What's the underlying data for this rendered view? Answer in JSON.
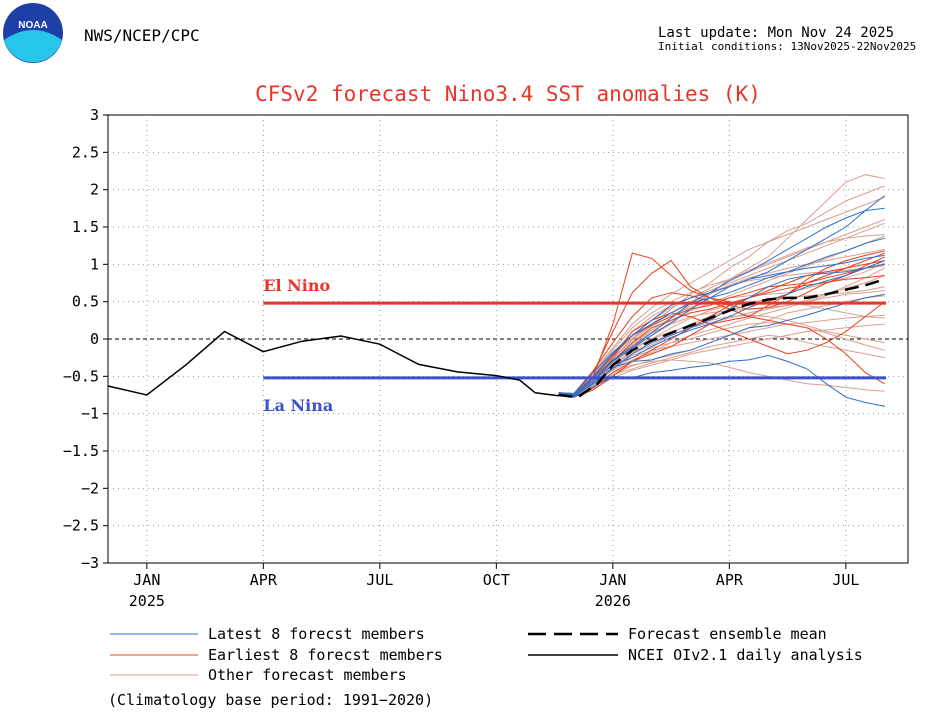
{
  "header": {
    "org": "NWS/NCEP/CPC",
    "logo_text": "NOAA",
    "last_update": "Last update: Mon Nov 24 2025",
    "initial_conditions": "Initial conditions: 13Nov2025-22Nov2025"
  },
  "colors": {
    "title": "#e8352a",
    "el_nino": "#e8352a",
    "la_nina": "#3e4fcf",
    "latest": "#2f6fcc",
    "earliest": "#e8401a",
    "other": "#d8a090",
    "analysis": "#000000",
    "logo_blue": "#1f3fa8",
    "logo_cyan": "#27c6e8"
  },
  "footer": {
    "climatology": "(Climatology base period: 1991−2020)"
  },
  "chart_data": {
    "type": "line",
    "title": "CFSv2 forecast Nino3.4 SST anomalies (K)",
    "xlabel": "",
    "ylabel": "",
    "xlim": [
      0,
      20.6
    ],
    "ylim": [
      -3,
      3
    ],
    "x_ticks": [
      {
        "x": 1,
        "label": "JAN",
        "year": "2025"
      },
      {
        "x": 4,
        "label": "APR",
        "year": ""
      },
      {
        "x": 7,
        "label": "JUL",
        "year": ""
      },
      {
        "x": 10,
        "label": "OCT",
        "year": ""
      },
      {
        "x": 13,
        "label": "JAN",
        "year": "2026"
      },
      {
        "x": 16,
        "label": "APR",
        "year": ""
      },
      {
        "x": 19,
        "label": "JUL",
        "year": ""
      }
    ],
    "y_ticks": [
      3,
      2.5,
      2,
      1.5,
      1,
      0.5,
      0,
      -0.5,
      -1,
      -1.5,
      -2,
      -2.5,
      -3
    ],
    "y_tick_labels": [
      "3",
      "2.5",
      "2",
      "1.5",
      "1",
      "0.5",
      "0",
      "−0.5",
      "−1",
      "−1.5",
      "−2",
      "−2.5",
      "−3"
    ],
    "grid": true,
    "thresholds": [
      {
        "name": "El Nino",
        "value": 0.48,
        "x_start": 4,
        "x_end": 20.6
      },
      {
        "name": "La Nina",
        "value": -0.52,
        "x_start": 4,
        "x_end": 20.6
      }
    ],
    "zero_line": 0,
    "analysis": {
      "name": "NCEI OIv2.1 daily analysis",
      "x": [
        0,
        1,
        2,
        3,
        4,
        5,
        6,
        7,
        8,
        9,
        10,
        10.6,
        11,
        11.6
      ],
      "y": [
        -0.63,
        -0.75,
        -0.35,
        0.1,
        -0.17,
        -0.03,
        0.04,
        -0.07,
        -0.34,
        -0.44,
        -0.49,
        -0.55,
        -0.72,
        -0.76
      ]
    },
    "ensemble_mean": {
      "name": "Forecast ensemble mean",
      "x": [
        11.6,
        12.1,
        12.6,
        13,
        13.5,
        14,
        14.5,
        15,
        15.5,
        16,
        16.5,
        17,
        17.5,
        18,
        18.5,
        19,
        19.5,
        20
      ],
      "y": [
        -0.75,
        -0.78,
        -0.6,
        -0.35,
        -0.15,
        -0.02,
        0.08,
        0.18,
        0.28,
        0.38,
        0.47,
        0.53,
        0.55,
        0.55,
        0.6,
        0.66,
        0.72,
        0.8
      ]
    },
    "member_x": [
      11.6,
      12,
      12.5,
      13,
      13.5,
      14,
      14.5,
      15,
      15.5,
      16,
      16.5,
      17,
      17.5,
      18,
      18.5,
      19,
      19.5,
      20
    ],
    "latest_members": [
      [
        -0.72,
        -0.75,
        -0.55,
        -0.3,
        -0.12,
        0.05,
        0.22,
        0.4,
        0.55,
        0.7,
        0.8,
        0.9,
        1.05,
        1.2,
        1.35,
        1.5,
        1.72,
        1.92
      ],
      [
        -0.72,
        -0.74,
        -0.52,
        -0.28,
        -0.1,
        0.08,
        0.28,
        0.48,
        0.62,
        0.78,
        0.9,
        1.05,
        1.2,
        1.35,
        1.5,
        1.62,
        1.72,
        1.75
      ],
      [
        -0.72,
        -0.76,
        -0.6,
        -0.38,
        -0.3,
        -0.28,
        -0.2,
        -0.15,
        -0.05,
        0.05,
        0.15,
        0.18,
        0.25,
        0.32,
        0.4,
        0.48,
        0.55,
        0.6
      ],
      [
        -0.72,
        -0.78,
        -0.64,
        -0.5,
        -0.52,
        -0.45,
        -0.42,
        -0.38,
        -0.35,
        -0.3,
        -0.28,
        -0.22,
        -0.3,
        -0.4,
        -0.6,
        -0.78,
        -0.85,
        -0.9
      ],
      [
        -0.72,
        -0.75,
        -0.5,
        -0.2,
        0.05,
        0.25,
        0.45,
        0.55,
        0.62,
        0.7,
        0.8,
        0.85,
        0.9,
        0.95,
        0.98,
        1.02,
        1.08,
        1.12
      ],
      [
        -0.72,
        -0.73,
        -0.45,
        -0.18,
        0.05,
        0.2,
        0.35,
        0.48,
        0.55,
        0.62,
        0.72,
        0.82,
        0.9,
        1.0,
        1.1,
        1.18,
        1.28,
        1.35
      ],
      [
        -0.72,
        -0.77,
        -0.58,
        -0.4,
        -0.2,
        -0.05,
        0.05,
        0.15,
        0.25,
        0.4,
        0.55,
        0.7,
        0.8,
        0.85,
        0.88,
        0.9,
        0.95,
        1.0
      ],
      [
        -0.72,
        -0.76,
        -0.55,
        -0.35,
        -0.25,
        -0.1,
        0.02,
        0.12,
        0.2,
        0.3,
        0.42,
        0.52,
        0.6,
        0.7,
        0.78,
        0.85,
        0.95,
        1.05
      ]
    ],
    "earliest_members": [
      [
        -0.72,
        -0.75,
        -0.5,
        0.2,
        1.15,
        1.08,
        0.85,
        0.65,
        0.55,
        0.5,
        0.45,
        0.5,
        0.6,
        0.75,
        0.85,
        0.95,
        1.05,
        1.15
      ],
      [
        -0.72,
        -0.74,
        -0.45,
        0.1,
        0.62,
        0.88,
        1.05,
        0.7,
        0.55,
        0.45,
        0.4,
        0.42,
        0.5,
        0.62,
        0.75,
        0.85,
        0.98,
        1.1
      ],
      [
        -0.72,
        -0.76,
        -0.6,
        -0.25,
        0.1,
        0.25,
        0.35,
        0.3,
        0.2,
        0.1,
        0.0,
        -0.1,
        -0.2,
        -0.15,
        -0.05,
        0.1,
        0.3,
        0.5
      ],
      [
        -0.72,
        -0.77,
        -0.65,
        -0.45,
        -0.3,
        -0.15,
        0.0,
        0.15,
        0.3,
        0.45,
        0.55,
        0.65,
        0.75,
        0.85,
        0.9,
        0.95,
        1.0,
        1.05
      ],
      [
        -0.72,
        -0.73,
        -0.42,
        -0.05,
        0.3,
        0.55,
        0.62,
        0.58,
        0.5,
        0.4,
        0.3,
        0.25,
        0.2,
        0.15,
        0.0,
        -0.2,
        -0.45,
        -0.6
      ],
      [
        -0.72,
        -0.75,
        -0.52,
        -0.22,
        0.05,
        0.18,
        0.3,
        0.4,
        0.45,
        0.55,
        0.62,
        0.7,
        0.72,
        0.75,
        0.82,
        0.88,
        0.95,
        1.0
      ],
      [
        -0.72,
        -0.78,
        -0.68,
        -0.5,
        -0.3,
        -0.2,
        -0.1,
        0.05,
        0.2,
        0.25,
        0.3,
        0.45,
        0.6,
        0.8,
        0.95,
        1.05,
        1.12,
        1.18
      ],
      [
        -0.72,
        -0.74,
        -0.55,
        -0.3,
        -0.05,
        0.15,
        0.25,
        0.35,
        0.4,
        0.48,
        0.55,
        0.62,
        0.68,
        0.72,
        0.76,
        0.8,
        0.82,
        0.85
      ]
    ],
    "other_members": [
      [
        -0.72,
        -0.76,
        -0.55,
        -0.3,
        -0.1,
        0.05,
        0.2,
        0.4,
        0.6,
        0.8,
        0.95,
        1.1,
        1.35,
        1.6,
        1.85,
        2.1,
        2.2,
        2.15
      ],
      [
        -0.72,
        -0.75,
        -0.5,
        -0.25,
        0.0,
        0.2,
        0.4,
        0.6,
        0.75,
        0.95,
        1.1,
        1.3,
        1.45,
        1.55,
        1.7,
        1.85,
        1.95,
        2.05
      ],
      [
        -0.72,
        -0.78,
        -0.62,
        -0.45,
        -0.35,
        -0.3,
        -0.28,
        -0.3,
        -0.32,
        -0.38,
        -0.45,
        -0.5,
        -0.55,
        -0.6,
        -0.62,
        -0.65,
        -0.68,
        -0.7
      ],
      [
        -0.72,
        -0.77,
        -0.6,
        -0.4,
        -0.25,
        -0.15,
        -0.1,
        -0.05,
        0.0,
        0.05,
        0.1,
        0.15,
        0.2,
        0.22,
        0.25,
        0.28,
        0.3,
        0.32
      ],
      [
        -0.72,
        -0.74,
        -0.48,
        -0.2,
        0.1,
        0.3,
        0.45,
        0.55,
        0.65,
        0.75,
        0.85,
        0.95,
        1.05,
        1.15,
        1.25,
        1.35,
        1.45,
        1.55
      ],
      [
        -0.72,
        -0.76,
        -0.58,
        -0.35,
        -0.15,
        0.0,
        0.15,
        0.28,
        0.38,
        0.45,
        0.5,
        0.52,
        0.55,
        0.58,
        0.6,
        0.62,
        0.65,
        0.7
      ],
      [
        -0.72,
        -0.75,
        -0.52,
        -0.28,
        -0.05,
        0.12,
        0.28,
        0.45,
        0.6,
        0.72,
        0.82,
        0.88,
        0.95,
        1.0,
        1.05,
        1.1,
        1.15,
        1.2
      ],
      [
        -0.72,
        -0.77,
        -0.63,
        -0.48,
        -0.4,
        -0.32,
        -0.25,
        -0.18,
        -0.1,
        -0.05,
        0.0,
        0.05,
        0.02,
        -0.05,
        -0.1,
        -0.15,
        -0.2,
        -0.25
      ],
      [
        -0.72,
        -0.73,
        -0.45,
        -0.15,
        0.15,
        0.35,
        0.5,
        0.62,
        0.72,
        0.8,
        0.9,
        1.0,
        1.1,
        1.2,
        1.3,
        1.4,
        1.5,
        1.6
      ],
      [
        -0.72,
        -0.76,
        -0.56,
        -0.34,
        -0.18,
        -0.05,
        0.08,
        0.2,
        0.3,
        0.38,
        0.45,
        0.48,
        0.5,
        0.45,
        0.4,
        0.35,
        0.3,
        0.28
      ],
      [
        -0.72,
        -0.78,
        -0.66,
        -0.52,
        -0.42,
        -0.35,
        -0.28,
        -0.2,
        -0.15,
        -0.1,
        -0.05,
        0.0,
        0.05,
        0.1,
        0.12,
        0.15,
        0.18,
        0.2
      ],
      [
        -0.72,
        -0.74,
        -0.5,
        -0.22,
        0.05,
        0.25,
        0.42,
        0.55,
        0.68,
        0.8,
        0.92,
        1.02,
        1.12,
        1.22,
        1.3,
        1.35,
        1.38,
        1.4
      ],
      [
        -0.72,
        -0.75,
        -0.54,
        -0.3,
        -0.08,
        0.08,
        0.2,
        0.3,
        0.35,
        0.38,
        0.4,
        0.42,
        0.45,
        0.5,
        0.55,
        0.6,
        0.62,
        0.65
      ],
      [
        -0.72,
        -0.77,
        -0.6,
        -0.42,
        -0.28,
        -0.18,
        -0.05,
        0.05,
        0.12,
        0.2,
        0.28,
        0.35,
        0.42,
        0.5,
        0.58,
        0.68,
        0.75,
        0.85
      ],
      [
        -0.72,
        -0.76,
        -0.55,
        -0.32,
        -0.12,
        0.0,
        0.1,
        0.18,
        0.25,
        0.3,
        0.32,
        0.3,
        0.25,
        0.18,
        0.1,
        0.05,
        0.0,
        -0.05
      ],
      [
        -0.72,
        -0.75,
        -0.52,
        -0.26,
        -0.02,
        0.18,
        0.35,
        0.5,
        0.62,
        0.72,
        0.78,
        0.82,
        0.85,
        0.88,
        0.9,
        0.92,
        0.95,
        0.98
      ],
      [
        -0.72,
        -0.73,
        -0.44,
        -0.12,
        0.2,
        0.42,
        0.6,
        0.75,
        0.9,
        1.05,
        1.2,
        1.3,
        1.4,
        1.5,
        1.6,
        1.7,
        1.8,
        1.9
      ],
      [
        -0.72,
        -0.78,
        -0.64,
        -0.48,
        -0.36,
        -0.28,
        -0.22,
        -0.15,
        -0.05,
        0.05,
        0.15,
        0.25,
        0.35,
        0.4,
        0.45,
        0.5,
        0.55,
        0.58
      ],
      [
        -0.72,
        -0.76,
        -0.57,
        -0.36,
        -0.2,
        -0.08,
        0.05,
        0.15,
        0.22,
        0.28,
        0.35,
        0.4,
        0.45,
        0.52,
        0.6,
        0.7,
        0.82,
        0.95
      ],
      [
        -0.72,
        -0.74,
        -0.49,
        -0.21,
        0.02,
        0.2,
        0.32,
        0.42,
        0.5,
        0.55,
        0.58,
        0.6,
        0.62,
        0.68,
        0.75,
        0.82,
        0.9,
        1.02
      ],
      [
        -0.72,
        -0.77,
        -0.59,
        -0.38,
        -0.22,
        -0.12,
        -0.05,
        0.0,
        0.08,
        0.15,
        0.2,
        0.22,
        0.2,
        0.15,
        0.08,
        0.0,
        -0.08,
        -0.15
      ],
      [
        -0.72,
        -0.75,
        -0.53,
        -0.29,
        -0.06,
        0.1,
        0.25,
        0.38,
        0.48,
        0.58,
        0.68,
        0.78,
        0.88,
        0.98,
        1.08,
        1.18,
        1.28,
        1.38
      ]
    ],
    "legend": {
      "latest": "Latest 8 forecst members",
      "earliest": "Earliest 8 forecst members",
      "other": "Other forecast members",
      "mean": "Forecast ensemble mean",
      "analysis": "NCEI OIv2.1 daily analysis"
    }
  }
}
